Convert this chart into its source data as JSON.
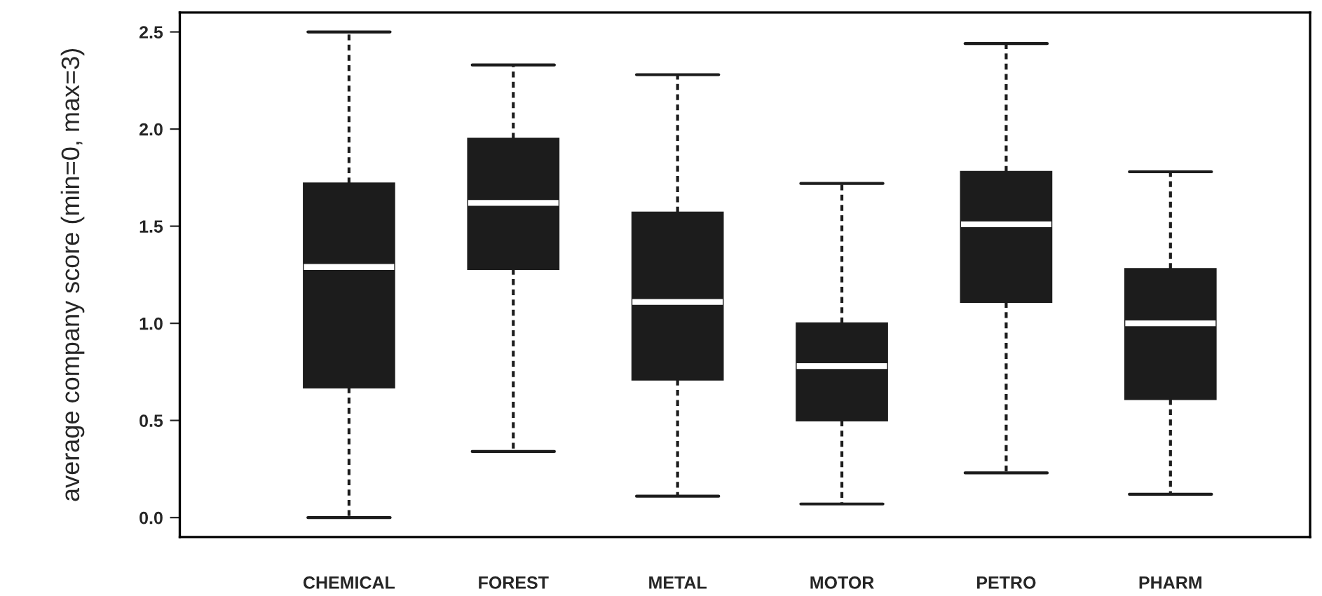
{
  "chart_data": {
    "type": "box",
    "ylabel": "average company score (min=0, max=3)",
    "categories": [
      "CHEMICAL",
      "FOREST",
      "METAL",
      "MOTOR",
      "PETRO",
      "PHARM"
    ],
    "series": [
      {
        "color": "#1c1c1c",
        "boxes": [
          {
            "low": 0.0,
            "q1": 0.67,
            "median": 1.29,
            "q3": 1.72,
            "high": 2.5
          },
          {
            "low": 0.34,
            "q1": 1.28,
            "median": 1.62,
            "q3": 1.95,
            "high": 2.33
          },
          {
            "low": 0.11,
            "q1": 0.71,
            "median": 1.11,
            "q3": 1.57,
            "high": 2.28
          },
          {
            "low": 0.07,
            "q1": 0.5,
            "median": 0.78,
            "q3": 1.0,
            "high": 1.72
          },
          {
            "low": 0.23,
            "q1": 1.11,
            "median": 1.51,
            "q3": 1.78,
            "high": 2.44
          },
          {
            "low": 0.12,
            "q1": 0.61,
            "median": 1.0,
            "q3": 1.28,
            "high": 1.78
          }
        ]
      }
    ],
    "ylim": [
      -0.1,
      2.6
    ],
    "yticks": [
      {
        "value": 0,
        "label": "0.0"
      },
      {
        "value": 0.5,
        "label": "0.5"
      },
      {
        "value": 1,
        "label": "1.0"
      },
      {
        "value": 1.5,
        "label": "1.5"
      },
      {
        "value": 2,
        "label": "2.0"
      },
      {
        "value": 2.5,
        "label": "2.5"
      }
    ]
  }
}
